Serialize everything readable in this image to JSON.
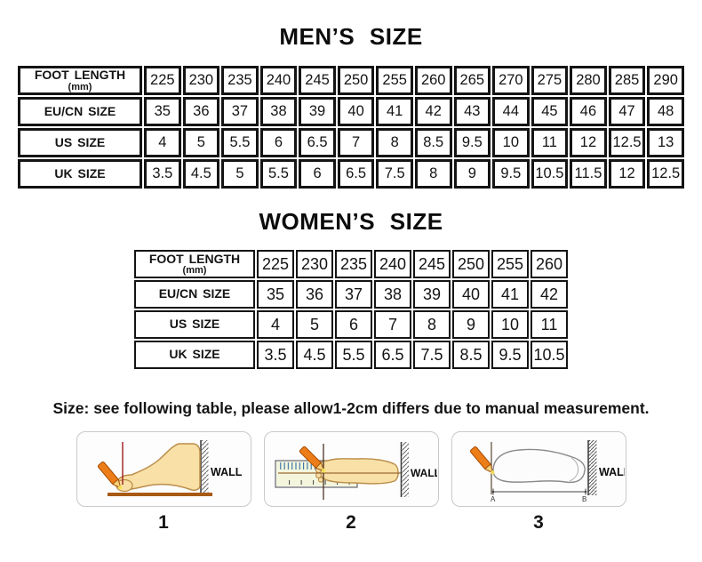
{
  "mens_table": {
    "title": "MEN’S SIZE",
    "rows": [
      {
        "label": "FOOT LENGTH",
        "sublabel": "(mm)",
        "values": [
          "225",
          "230",
          "235",
          "240",
          "245",
          "250",
          "255",
          "260",
          "265",
          "270",
          "275",
          "280",
          "285",
          "290"
        ]
      },
      {
        "label": "EU/CN SIZE",
        "sublabel": "",
        "values": [
          "35",
          "36",
          "37",
          "38",
          "39",
          "40",
          "41",
          "42",
          "43",
          "44",
          "45",
          "46",
          "47",
          "48"
        ]
      },
      {
        "label": "US SIZE",
        "sublabel": "",
        "values": [
          "4",
          "5",
          "5.5",
          "6",
          "6.5",
          "7",
          "8",
          "8.5",
          "9.5",
          "10",
          "11",
          "12",
          "12.5",
          "13"
        ]
      },
      {
        "label": "UK SIZE",
        "sublabel": "",
        "values": [
          "3.5",
          "4.5",
          "5",
          "5.5",
          "6",
          "6.5",
          "7.5",
          "8",
          "9",
          "9.5",
          "10.5",
          "11.5",
          "12",
          "12.5"
        ]
      }
    ]
  },
  "womens_table": {
    "title": "WOMEN’S SIZE",
    "rows": [
      {
        "label": "FOOT LENGTH",
        "sublabel": "(mm)",
        "values": [
          "225",
          "230",
          "235",
          "240",
          "245",
          "250",
          "255",
          "260"
        ]
      },
      {
        "label": "EU/CN SIZE",
        "sublabel": "",
        "values": [
          "35",
          "36",
          "37",
          "38",
          "39",
          "40",
          "41",
          "42"
        ]
      },
      {
        "label": "US SIZE",
        "sublabel": "",
        "values": [
          "4",
          "5",
          "6",
          "7",
          "8",
          "9",
          "10",
          "11"
        ]
      },
      {
        "label": "UK SIZE",
        "sublabel": "",
        "values": [
          "3.5",
          "4.5",
          "5.5",
          "6.5",
          "7.5",
          "8.5",
          "9.5",
          "10.5"
        ]
      }
    ]
  },
  "note": "Size: see following table, please allow1-2cm differs due to manual measurement.",
  "figures": [
    {
      "number": "1",
      "wall_label": "WALL"
    },
    {
      "number": "2",
      "wall_label": "WALL"
    },
    {
      "number": "3",
      "wall_label": "WALL",
      "point_a": "A",
      "point_b": "B"
    }
  ],
  "colors": {
    "table_border": "#141414",
    "pencil_orange": "#ed7d18",
    "pencil_wood": "#f5d27c",
    "skin": "#f8e0a6",
    "skin_outline": "#bb8e4b",
    "ground_brown": "#a85a14",
    "mark_red": "#9b1c1c",
    "ruler_fill": "#f3f6dd",
    "ruler_tick_blue": "#2f6ba3",
    "box_border": "#c9c9c9"
  }
}
